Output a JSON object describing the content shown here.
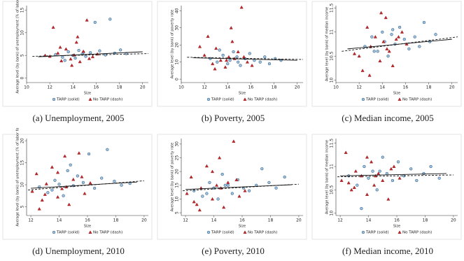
{
  "chart_data": [
    {
      "type": "scatter",
      "caption": "(a) Unemployment, 2005",
      "xlabel": "Size",
      "ylabel": "Average level (by bank) of unemployment (% of labor fo",
      "xlim": [
        10,
        20.5
      ],
      "xticks": [
        10,
        12,
        14,
        16,
        18,
        20
      ],
      "ylim": [
        -1,
        16
      ],
      "yticks": [
        0,
        5,
        10,
        15
      ],
      "series": [
        {
          "name": "TARP (solid)",
          "marker": "circle",
          "color": "#9fc3df",
          "edge": "#1f4e79",
          "line_style": "solid",
          "x": [
            12.5,
            13.1,
            13.6,
            14.0,
            14.2,
            14.5,
            14.8,
            15.1,
            15.5,
            15.9,
            16.3,
            16.8,
            17.2,
            17.6,
            18.1,
            18.6,
            13.3,
            14.9
          ],
          "values": [
            5.2,
            4.6,
            5.8,
            5.0,
            4.4,
            6.1,
            5.3,
            4.8,
            5.6,
            12.3,
            6.0,
            5.1,
            13.0,
            5.5,
            6.2,
            5.4,
            3.9,
            5.7
          ],
          "fit": {
            "x": [
              11,
              20
            ],
            "y": [
              4.7,
              5.8
            ]
          }
        },
        {
          "name": "No TARP (dash)",
          "marker": "triangle",
          "color": "#c0282b",
          "edge": "#8a1518",
          "line_style": "dashed",
          "x": [
            12.0,
            12.3,
            12.7,
            13.0,
            13.4,
            13.8,
            14.1,
            14.3,
            14.6,
            14.9,
            15.2,
            15.7,
            16.1,
            11.6,
            13.9,
            14.4,
            12.9,
            15.4
          ],
          "values": [
            4.8,
            11.2,
            5.5,
            3.8,
            6.4,
            4.2,
            5.1,
            7.9,
            3.6,
            5.9,
            12.8,
            4.7,
            5.3,
            5.0,
            2.8,
            9.1,
            6.8,
            4.3
          ],
          "fit": {
            "x": [
              10.5,
              20.5
            ],
            "y": [
              4.8,
              5.4
            ]
          }
        }
      ]
    },
    {
      "type": "scatter",
      "caption": "(b) Poverty, 2005",
      "xlabel": "Size",
      "ylabel": "Average level (by bank) of poverty rate",
      "xlim": [
        10,
        20.5
      ],
      "xticks": [
        10,
        12,
        14,
        16,
        18,
        20
      ],
      "ylim": [
        -2,
        43
      ],
      "yticks": [
        0,
        10,
        20,
        30,
        40
      ],
      "series": [
        {
          "name": "TARP (solid)",
          "marker": "circle",
          "color": "#9fc3df",
          "edge": "#1f4e79",
          "line_style": "solid",
          "x": [
            12.5,
            13.1,
            13.6,
            14.0,
            14.2,
            14.5,
            14.8,
            15.1,
            15.5,
            15.9,
            16.3,
            16.8,
            17.2,
            17.6,
            18.1,
            18.6,
            13.3,
            14.9
          ],
          "values": [
            12,
            10,
            14,
            9,
            11,
            16,
            13,
            8,
            12,
            15,
            11,
            10,
            13,
            9,
            12,
            11,
            17,
            10
          ],
          "fit": {
            "x": [
              11,
              20
            ],
            "y": [
              12.5,
              11
            ]
          }
        },
        {
          "name": "No TARP (dash)",
          "marker": "triangle",
          "color": "#c0282b",
          "edge": "#8a1518",
          "line_style": "dashed",
          "x": [
            12.0,
            12.3,
            12.7,
            13.0,
            13.4,
            13.8,
            14.1,
            14.3,
            14.6,
            14.9,
            15.2,
            15.7,
            16.1,
            11.6,
            13.9,
            14.4,
            12.9,
            15.4
          ],
          "values": [
            14,
            25,
            9,
            18,
            11,
            7,
            13,
            30,
            12,
            16,
            42,
            10,
            8,
            19,
            11,
            22,
            6,
            13
          ],
          "fit": {
            "x": [
              10.5,
              20.5
            ],
            "y": [
              12.8,
              11.5
            ]
          }
        }
      ]
    },
    {
      "type": "scatter",
      "caption": "(c) Median income, 2005",
      "xlabel": "Size",
      "ylabel": "Average level (by bank) of median income",
      "xlim": [
        10,
        20.5
      ],
      "xticks": [
        10,
        12,
        14,
        16,
        18,
        20
      ],
      "ylim": [
        9.95,
        11.55
      ],
      "yticks": [
        10,
        10.5,
        11,
        11.5
      ],
      "series": [
        {
          "name": "TARP (solid)",
          "marker": "circle",
          "color": "#9fc3df",
          "edge": "#1f4e79",
          "line_style": "solid",
          "x": [
            12.5,
            13.1,
            13.6,
            14.0,
            14.2,
            14.5,
            14.8,
            15.1,
            15.5,
            15.9,
            16.3,
            16.8,
            17.2,
            17.6,
            18.1,
            18.6,
            13.3,
            14.9
          ],
          "values": [
            10.7,
            10.9,
            10.6,
            11.0,
            10.8,
            10.5,
            10.95,
            10.75,
            11.1,
            10.85,
            10.65,
            10.9,
            10.7,
            11.2,
            10.8,
            10.95,
            10.6,
            11.05
          ],
          "fit": {
            "x": [
              11,
              20
            ],
            "y": [
              10.65,
              10.85
            ]
          }
        },
        {
          "name": "No TARP (dash)",
          "marker": "triangle",
          "color": "#c0282b",
          "edge": "#8a1518",
          "line_style": "dashed",
          "x": [
            12.0,
            12.3,
            12.7,
            13.0,
            13.4,
            13.8,
            14.1,
            14.3,
            14.6,
            14.9,
            15.2,
            15.7,
            16.1,
            11.6,
            13.9,
            14.4,
            12.9,
            15.4
          ],
          "values": [
            10.5,
            10.2,
            11.1,
            10.7,
            10.9,
            10.4,
            10.8,
            11.3,
            10.6,
            10.3,
            10.85,
            11.0,
            10.75,
            10.55,
            11.4,
            10.65,
            10.1,
            10.9
          ],
          "fit": {
            "x": [
              10.5,
              20.5
            ],
            "y": [
              10.6,
              10.9
            ]
          }
        }
      ]
    },
    {
      "type": "scatter",
      "caption": "(d) Unemployment, 2010",
      "xlabel": "Size",
      "ylabel": "Average level (by bank) of unemployment (% of labor fo",
      "xlim": [
        11.7,
        20.3
      ],
      "xticks": [
        12,
        14,
        16,
        18,
        20
      ],
      "ylim": [
        3,
        20.5
      ],
      "yticks": [
        5,
        10,
        15,
        20
      ],
      "series": [
        {
          "name": "TARP (solid)",
          "marker": "circle",
          "color": "#9fc3df",
          "edge": "#1f4e79",
          "line_style": "solid",
          "x": [
            12.6,
            13.2,
            13.7,
            14.0,
            14.3,
            14.6,
            15.0,
            15.3,
            15.7,
            16.1,
            16.5,
            17.0,
            17.4,
            17.9,
            18.4,
            19.0,
            13.5,
            14.8
          ],
          "values": [
            9.5,
            8.2,
            11.0,
            10.1,
            7.5,
            13.2,
            9.8,
            12.0,
            10.5,
            17.0,
            9.2,
            11.5,
            18.0,
            10.8,
            9.9,
            10.3,
            8.8,
            14.5
          ],
          "fit": {
            "x": [
              12,
              19.5
            ],
            "y": [
              9.2,
              10.6
            ]
          }
        },
        {
          "name": "No TARP (dash)",
          "marker": "triangle",
          "color": "#c0282b",
          "edge": "#8a1518",
          "line_style": "dashed",
          "x": [
            12.1,
            12.4,
            12.8,
            13.1,
            13.5,
            13.9,
            14.2,
            14.4,
            14.7,
            15.0,
            15.4,
            15.8,
            16.2,
            12.6,
            13.9,
            14.5,
            13.0,
            15.6
          ],
          "values": [
            8.5,
            12.5,
            6.5,
            10.2,
            14.0,
            7.2,
            9.1,
            16.5,
            5.5,
            11.2,
            17.2,
            8.0,
            10.4,
            4.5,
            12.8,
            9.5,
            7.8,
            11.8
          ],
          "fit": {
            "x": [
              11.8,
              20
            ],
            "y": [
              8.8,
              10.9
            ]
          }
        }
      ]
    },
    {
      "type": "scatter",
      "caption": "(e) Poverty, 2010",
      "xlabel": "Size",
      "ylabel": "Average level (by bank) of poverty rate",
      "xlim": [
        11.7,
        20.3
      ],
      "xticks": [
        12,
        14,
        16,
        18,
        20
      ],
      "ylim": [
        4,
        32
      ],
      "yticks": [
        5,
        10,
        15,
        20,
        25,
        30
      ],
      "series": [
        {
          "name": "TARP (solid)",
          "marker": "circle",
          "color": "#9fc3df",
          "edge": "#1f4e79",
          "line_style": "solid",
          "x": [
            12.6,
            13.2,
            13.7,
            14.0,
            14.3,
            14.6,
            15.0,
            15.3,
            15.7,
            16.1,
            16.5,
            17.0,
            17.4,
            17.9,
            18.4,
            19.0,
            13.5,
            14.8
          ],
          "values": [
            13,
            11,
            16,
            14,
            10,
            19,
            15,
            12,
            17,
            14,
            13,
            15,
            21,
            16,
            14,
            18,
            12,
            15
          ],
          "fit": {
            "x": [
              12,
              19.5
            ],
            "y": [
              13.5,
              15.2
            ]
          }
        },
        {
          "name": "No TARP (dash)",
          "marker": "triangle",
          "color": "#c0282b",
          "edge": "#8a1518",
          "line_style": "dashed",
          "x": [
            12.1,
            12.4,
            12.8,
            13.1,
            13.5,
            13.9,
            14.2,
            14.4,
            14.7,
            15.0,
            15.4,
            15.8,
            16.2,
            12.6,
            13.9,
            14.5,
            13.0,
            15.6
          ],
          "values": [
            12,
            18,
            8,
            14,
            22,
            10,
            15,
            25,
            7,
            16,
            31,
            11,
            13,
            9,
            20,
            14,
            6,
            17
          ],
          "fit": {
            "x": [
              11.8,
              20
            ],
            "y": [
              13.0,
              15.4
            ]
          }
        }
      ]
    },
    {
      "type": "scatter",
      "caption": "(f) Median income, 2010",
      "xlabel": "Size",
      "ylabel": "Average level (by bank) of median income",
      "xlim": [
        11.7,
        20.3
      ],
      "xticks": [
        12,
        14,
        16,
        18,
        20
      ],
      "ylim": [
        9.95,
        11.6
      ],
      "yticks": [
        10,
        10.5,
        11,
        11.5
      ],
      "series": [
        {
          "name": "TARP (solid)",
          "marker": "circle",
          "color": "#9fc3df",
          "edge": "#1f4e79",
          "line_style": "solid",
          "x": [
            12.6,
            13.2,
            13.7,
            14.0,
            14.3,
            14.6,
            15.0,
            15.3,
            15.7,
            16.1,
            16.5,
            17.0,
            17.4,
            17.9,
            18.4,
            19.0,
            13.5,
            14.8
          ],
          "values": [
            10.8,
            10.6,
            11.0,
            10.75,
            10.9,
            10.5,
            11.2,
            10.85,
            10.7,
            11.1,
            10.8,
            10.95,
            10.7,
            10.85,
            11.0,
            10.75,
            10.1,
            10.9
          ],
          "fit": {
            "x": [
              12,
              19.5
            ],
            "y": [
              10.8,
              10.85
            ]
          }
        },
        {
          "name": "No TARP (dash)",
          "marker": "triangle",
          "color": "#c0282b",
          "edge": "#8a1518",
          "line_style": "dashed",
          "x": [
            12.1,
            12.4,
            12.8,
            13.1,
            13.5,
            13.9,
            14.2,
            14.4,
            14.7,
            15.0,
            15.4,
            15.8,
            16.2,
            12.6,
            13.9,
            14.5,
            13.0,
            15.6
          ],
          "values": [
            10.7,
            11.3,
            10.5,
            10.9,
            10.8,
            10.4,
            11.1,
            10.6,
            10.85,
            10.7,
            10.3,
            11.0,
            10.75,
            10.65,
            11.2,
            10.8,
            10.55,
            10.95
          ],
          "fit": {
            "x": [
              11.8,
              20
            ],
            "y": [
              10.78,
              10.82
            ]
          }
        }
      ]
    }
  ]
}
